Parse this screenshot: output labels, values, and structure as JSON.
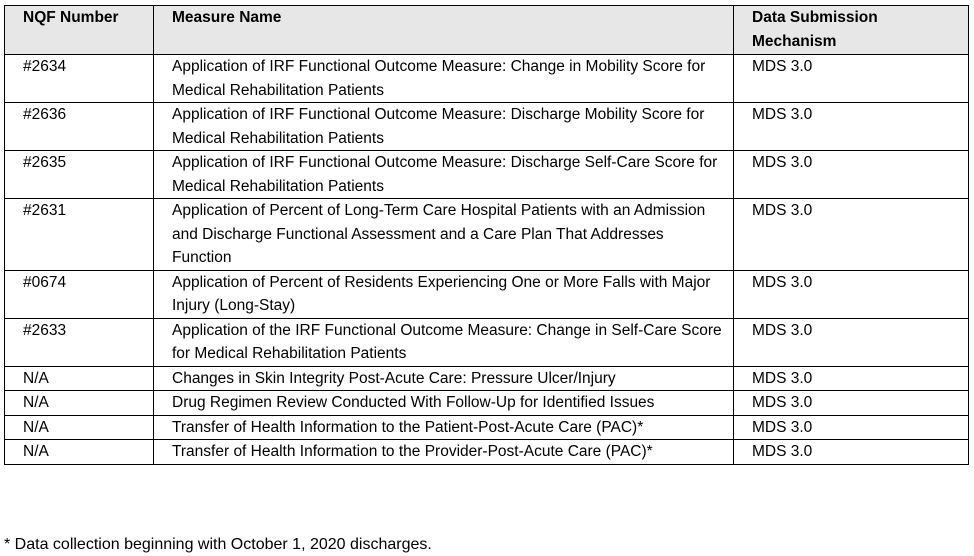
{
  "table": {
    "header": [
      "NQF Number",
      "Measure Name",
      "Data Submission Mechanism"
    ],
    "rows": [
      [
        "#2634",
        "Application of IRF Functional Outcome Measure: Change in Mobility Score for Medical Rehabilitation Patients",
        "MDS 3.0"
      ],
      [
        "#2636",
        "Application of IRF Functional Outcome Measure: Discharge Mobility Score for Medical Rehabilitation Patients",
        "MDS 3.0"
      ],
      [
        "#2635",
        "Application of IRF Functional Outcome Measure: Discharge Self-Care Score for Medical Rehabilitation Patients",
        "MDS 3.0"
      ],
      [
        "#2631",
        "Application of Percent of Long-Term Care Hospital Patients with an Admission and Discharge Functional Assessment and a Care Plan That Addresses Function",
        "MDS 3.0"
      ],
      [
        "#0674",
        "Application of Percent of Residents Experiencing One or More Falls with Major Injury (Long-Stay)",
        "MDS 3.0"
      ],
      [
        "#2633",
        "Application of the IRF Functional Outcome Measure: Change in Self-Care Score for Medical Rehabilitation Patients",
        "MDS 3.0"
      ],
      [
        "N/A",
        "Changes in Skin Integrity Post-Acute Care: Pressure Ulcer/Injury",
        "MDS 3.0"
      ],
      [
        "N/A",
        "Drug Regimen Review Conducted With Follow-Up for Identified Issues",
        "MDS 3.0"
      ],
      [
        "N/A",
        "Transfer of Health Information to the Patient-Post-Acute Care (PAC)*",
        "MDS 3.0"
      ],
      [
        "N/A",
        "Transfer of Health Information to the Provider-Post-Acute Care (PAC)*",
        "MDS 3.0"
      ]
    ]
  },
  "footnote": "* Data collection beginning with October 1, 2020 discharges."
}
